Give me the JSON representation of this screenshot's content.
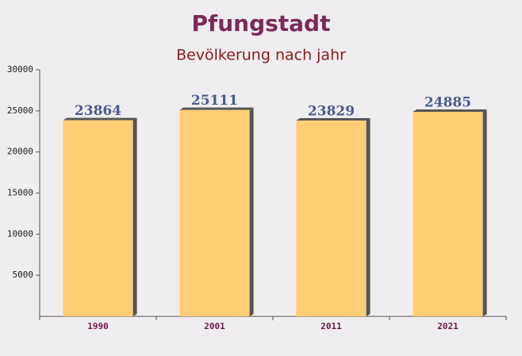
{
  "chart_data": {
    "type": "bar",
    "title": "Pfungstadt",
    "subtitle": "Bevölkerung nach jahr",
    "categories": [
      "1990",
      "2001",
      "2011",
      "2021"
    ],
    "values": [
      23864,
      25111,
      23829,
      24885
    ],
    "color": "#ffc966",
    "ylim": [
      0,
      30000
    ],
    "yticks": [
      5000,
      10000,
      15000,
      20000,
      25000,
      30000
    ]
  }
}
